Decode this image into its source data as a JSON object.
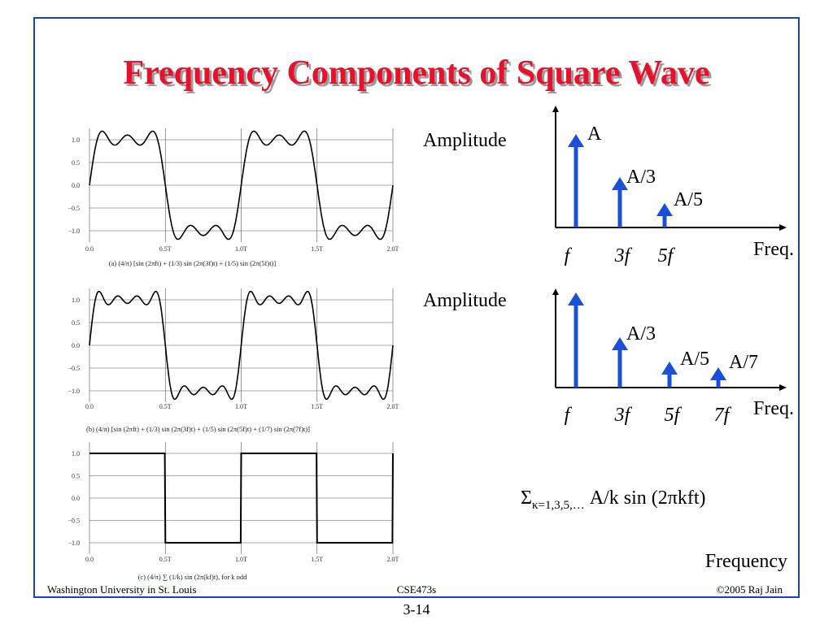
{
  "title": "Frequency Components of Square Wave",
  "plots": [
    {
      "yticks": [
        "1.0",
        "0.5",
        "0.0",
        "−0.5",
        "−1.0"
      ],
      "xticks": [
        "0.0",
        "0.5T",
        "1.0T",
        "1.5T",
        "2.0T"
      ],
      "caption": "(a) (4/π) [sin (2πft) + (1/3) sin (2π(3f)t) + (1/5) sin (2π(5f)t)]"
    },
    {
      "yticks": [
        "1.0",
        "0.5",
        "0.0",
        "−0.5",
        "−1.0"
      ],
      "xticks": [
        "0.0",
        "0.5T",
        "1.0T",
        "1.5T",
        "2.0T"
      ],
      "caption": "(b) (4/π) [sin (2πft) + (1/3) sin (2π(3f)t) + (1/5) sin (2π(5f)t) + (1/7) sin (2π(7f)t)]"
    },
    {
      "yticks": [
        "1.0",
        "0.5",
        "0.0",
        "−0.5",
        "−1.0"
      ],
      "xticks": [
        "0.0",
        "0.5T",
        "1.0T",
        "1.5T",
        "2.0T"
      ],
      "caption": "(c) (4/π) ∑ (1/k) sin (2π(kf)t),    for k odd"
    }
  ],
  "spectra": [
    {
      "y_label": "Amplitude",
      "peak_labels": [
        "A",
        "A/3",
        "A/5"
      ],
      "x_labels": [
        "f",
        "3f",
        "5f"
      ],
      "x_title": "Freq."
    },
    {
      "y_label": "Amplitude",
      "peak_labels": [
        "A/3",
        "A/5",
        "A/7"
      ],
      "x_labels": [
        "f",
        "3f",
        "5f",
        "7f"
      ],
      "x_title": "Freq."
    }
  ],
  "formula": {
    "symbol": "Σ",
    "subscript": "κ=1,3,5,…",
    "body": " A/k sin (2πkft)"
  },
  "frequency_label": "Frequency",
  "footer": {
    "left": "Washington University in St. Louis",
    "center": "CSE473s",
    "right": "©2005 Raj Jain"
  },
  "page_number": "3-14"
}
